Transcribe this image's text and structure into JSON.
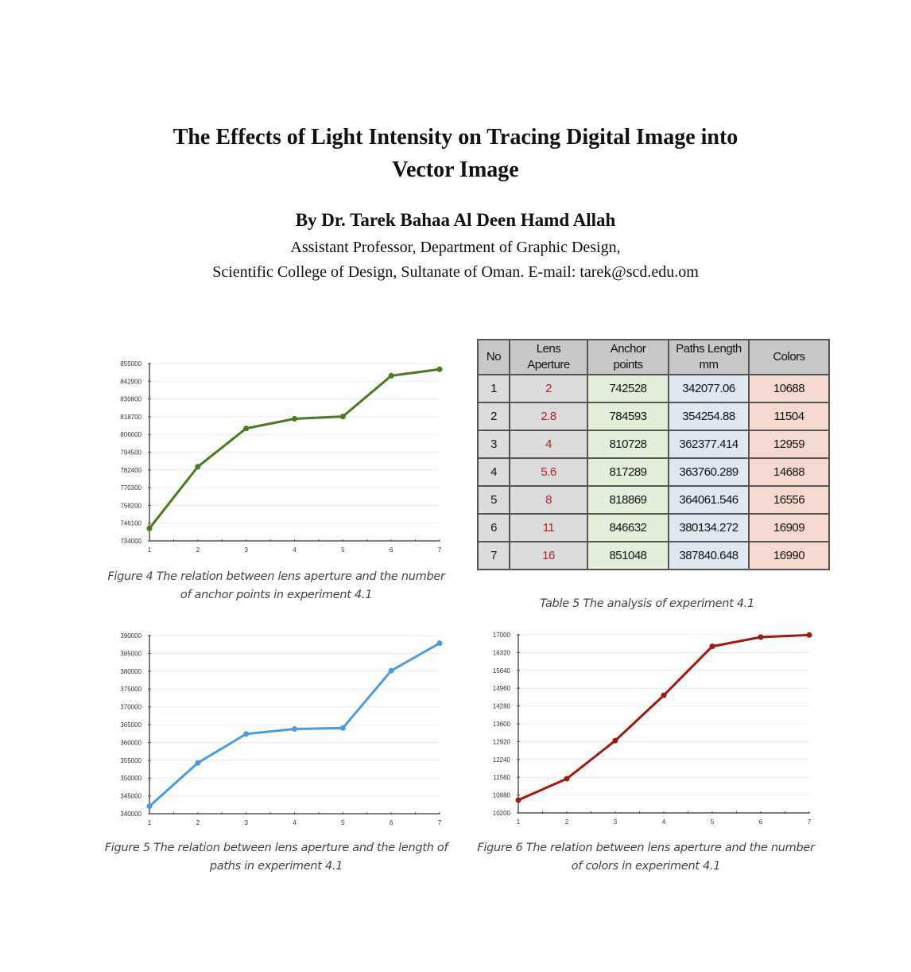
{
  "paper": {
    "title_line1": "The Effects of Light Intensity on Tracing Digital Image into",
    "title_line2": "Vector Image",
    "author": "By Dr. Tarek Bahaa Al Deen Hamd Allah",
    "affiliation_line1": "Assistant Professor, Department of Graphic Design,",
    "affiliation_line2": "Scientific College of Design, Sultanate of Oman. E-mail: tarek@scd.edu.om"
  },
  "table": {
    "caption": "Table 5 The analysis of experiment 4.1",
    "headers": [
      "No",
      "Lens Aperture",
      "Anchor points",
      "Paths Length mm",
      "Colors"
    ],
    "header_lines": [
      [
        "No"
      ],
      [
        "Lens",
        "Aperture"
      ],
      [
        "Anchor",
        "points"
      ],
      [
        "Paths Length",
        "mm"
      ],
      [
        "Colors"
      ]
    ],
    "rows": [
      [
        "1",
        "2",
        "742528",
        "342077.06",
        "10688"
      ],
      [
        "2",
        "2.8",
        "784593",
        "354254.88",
        "11504"
      ],
      [
        "3",
        "4",
        "810728",
        "362377.414",
        "12959"
      ],
      [
        "4",
        "5.6",
        "817289",
        "363760.289",
        "14688"
      ],
      [
        "5",
        "8",
        "818869",
        "364061.546",
        "16556"
      ],
      [
        "6",
        "11",
        "846632",
        "380134.272",
        "16909"
      ],
      [
        "7",
        "16",
        "851048",
        "387840.648",
        "16990"
      ]
    ],
    "colors": {
      "header_bg": "#c8c8c8",
      "no_bg": "#dcdcdc",
      "lens_bg": "#dcdcdc",
      "lens_text": "#b0222a",
      "anchor_bg": "#e3efd9",
      "paths_bg": "#dde8f3",
      "colors_bg": "#f6d9cf"
    }
  },
  "captions": {
    "fig4_line1": "Figure 4 The relation between lens aperture and the number",
    "fig4_line2": "of anchor points in experiment 4.1",
    "fig5_line1": "Figure 5 The relation between lens aperture and the length of",
    "fig5_line2": "paths in experiment 4.1",
    "fig6_line1": "Figure 6 The relation between lens aperture and the number",
    "fig6_line2": "of colors in experiment 4.1"
  },
  "chart_data": [
    {
      "id": "figure-4",
      "type": "line",
      "title": "Figure 4 The relation between lens aperture and the number of anchor points in experiment 4.1",
      "xlabel": "",
      "ylabel": "",
      "x": [
        1,
        2,
        3,
        4,
        5,
        6,
        7
      ],
      "values": [
        742528,
        784593,
        810728,
        817289,
        818869,
        846632,
        851048
      ],
      "yticks": [
        734000,
        746100,
        758200,
        770300,
        782400,
        794500,
        806600,
        818700,
        830800,
        842900,
        855000
      ],
      "ylim": [
        734000,
        855000
      ],
      "grid": true,
      "legend": "none",
      "color": "#4a7a1e"
    },
    {
      "id": "figure-5",
      "type": "line",
      "title": "Figure 5 The relation between lens aperture and the length of paths in experiment 4.1",
      "xlabel": "",
      "ylabel": "",
      "x": [
        1,
        2,
        3,
        4,
        5,
        6,
        7
      ],
      "values": [
        342077.06,
        354254.88,
        362377.414,
        363760.289,
        364061.546,
        380134.272,
        387840.648
      ],
      "yticks": [
        340000,
        345000,
        350000,
        355000,
        360000,
        365000,
        370000,
        375000,
        380000,
        385000,
        390000
      ],
      "ylim": [
        340000,
        390000
      ],
      "grid": true,
      "legend": "none",
      "color": "#4a9be0"
    },
    {
      "id": "figure-6",
      "type": "line",
      "title": "Figure 6 The relation between lens aperture and the number of colors in experiment 4.1",
      "xlabel": "",
      "ylabel": "",
      "x": [
        1,
        2,
        3,
        4,
        5,
        6,
        7
      ],
      "values": [
        10688,
        11504,
        12959,
        14688,
        16556,
        16909,
        16990
      ],
      "yticks": [
        10200,
        10880,
        11560,
        12240,
        12920,
        13600,
        14280,
        14960,
        15640,
        16320,
        17000
      ],
      "ylim": [
        10200,
        17000
      ],
      "grid": true,
      "legend": "none",
      "color": "#9e1a12"
    }
  ]
}
